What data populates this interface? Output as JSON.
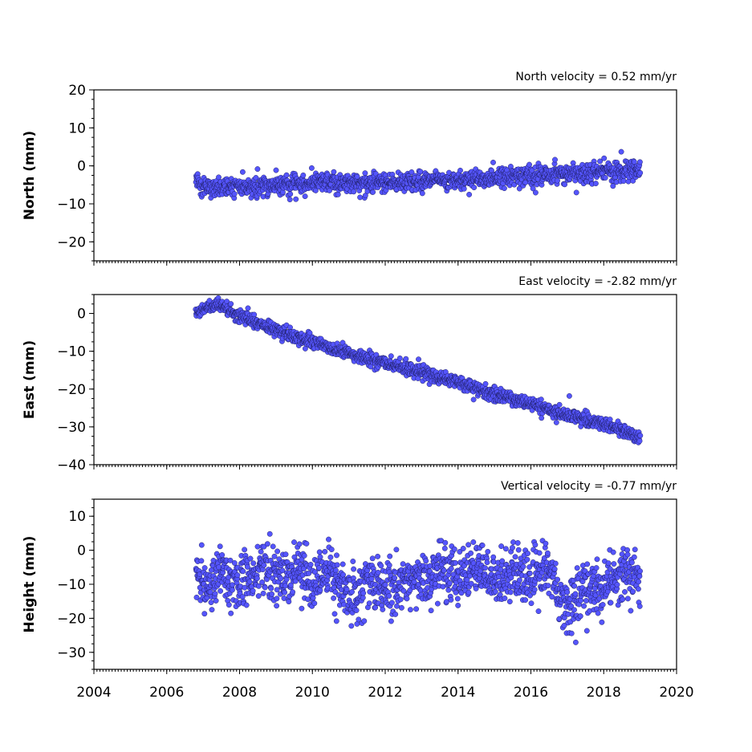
{
  "chart_data": [
    {
      "type": "scatter",
      "title": "North velocity = 0.52 mm/yr",
      "ylabel": "North (mm)",
      "xlim": [
        2004,
        2020
      ],
      "ylim": [
        -25,
        20
      ],
      "yticks": [
        "20",
        "10",
        "0",
        "−10",
        "−20"
      ],
      "xticks": [
        "2004",
        "2006",
        "2008",
        "2010",
        "2012",
        "2014",
        "2016",
        "2018",
        "2020"
      ],
      "series": [
        {
          "color": "#5555ff",
          "x": [
            2006.8,
            2007.0,
            2007.2,
            2007.5,
            2008.0,
            2008.5,
            2009.0,
            2009.5,
            2010.0,
            2010.5,
            2011.0,
            2011.5,
            2012.0,
            2012.5,
            2013.0,
            2013.5,
            2014.0,
            2014.5,
            2015.0,
            2015.5,
            2016.0,
            2016.5,
            2017.0,
            2017.5,
            2018.0,
            2018.5,
            2019.0
          ],
          "y": [
            -3.0,
            -5.5,
            -6.0,
            -6.0,
            -5.6,
            -5.4,
            -5.0,
            -4.8,
            -4.5,
            -4.5,
            -4.6,
            -4.6,
            -4.4,
            -4.2,
            -4.1,
            -4.0,
            -3.8,
            -3.6,
            -3.3,
            -3.0,
            -2.6,
            -2.3,
            -2.0,
            -1.8,
            -1.5,
            -1.3,
            -1.0
          ]
        }
      ]
    },
    {
      "type": "scatter",
      "title": "East velocity = -2.82 mm/yr",
      "ylabel": "East (mm)",
      "xlim": [
        2004,
        2020
      ],
      "ylim": [
        -40,
        5
      ],
      "yticks": [
        "0",
        "−10",
        "−20",
        "−30",
        "−40"
      ],
      "xticks": [
        "2004",
        "2006",
        "2008",
        "2010",
        "2012",
        "2014",
        "2016",
        "2018",
        "2020"
      ],
      "series": [
        {
          "color": "#5555ff",
          "x": [
            2006.8,
            2007.2,
            2007.5,
            2008.0,
            2008.5,
            2009.0,
            2009.5,
            2010.0,
            2010.5,
            2011.0,
            2011.5,
            2012.0,
            2012.5,
            2013.0,
            2013.5,
            2014.0,
            2014.5,
            2015.0,
            2015.5,
            2016.0,
            2016.5,
            2017.0,
            2017.5,
            2018.0,
            2018.5,
            2019.0
          ],
          "y": [
            0.5,
            2.0,
            1.5,
            -0.5,
            -2.5,
            -4.5,
            -6.0,
            -7.5,
            -9.0,
            -10.5,
            -12.0,
            -13.0,
            -14.5,
            -15.5,
            -17.0,
            -18.0,
            -20.0,
            -21.5,
            -22.5,
            -24.0,
            -25.5,
            -27.0,
            -28.0,
            -29.5,
            -31.0,
            -32.5
          ]
        }
      ]
    },
    {
      "type": "scatter",
      "title": "Vertical velocity = -0.77 mm/yr",
      "ylabel": "Height (mm)",
      "xlim": [
        2004,
        2020
      ],
      "ylim": [
        -35,
        15
      ],
      "yticks": [
        "10",
        "0",
        "−10",
        "−20",
        "−30"
      ],
      "xticks": [
        "2004",
        "2006",
        "2008",
        "2010",
        "2012",
        "2014",
        "2016",
        "2018",
        "2020"
      ],
      "series": [
        {
          "color": "#5555ff",
          "x": [
            2006.8,
            2007.0,
            2007.5,
            2008.0,
            2008.5,
            2009.0,
            2009.5,
            2010.0,
            2010.5,
            2011.0,
            2011.5,
            2012.0,
            2012.5,
            2013.0,
            2013.5,
            2014.0,
            2014.5,
            2015.0,
            2015.5,
            2016.0,
            2016.5,
            2017.0,
            2017.5,
            2018.0,
            2018.5,
            2019.0
          ],
          "y": [
            -5,
            -12,
            -6,
            -10,
            -4,
            -10,
            -7,
            -9,
            -8,
            -14,
            -9,
            -12,
            -8,
            -9,
            -6,
            -7,
            -5,
            -9,
            -6,
            -9,
            -5,
            -18,
            -10,
            -12,
            -6,
            -9
          ]
        }
      ]
    }
  ]
}
